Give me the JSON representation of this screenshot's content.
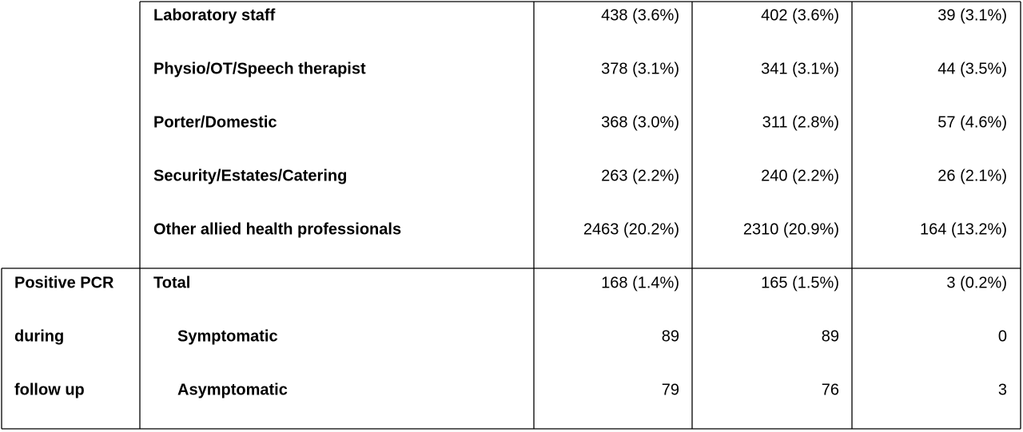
{
  "table": {
    "sections": [
      {
        "rows": [
          {
            "label": "Laboratory staff",
            "values": [
              "438 (3.6%)",
              "402 (3.6%)",
              "39 (3.1%)"
            ]
          },
          {
            "label": "Physio/OT/Speech therapist",
            "values": [
              "378 (3.1%)",
              "341 (3.1%)",
              "44 (3.5%)"
            ]
          },
          {
            "label": "Porter/Domestic",
            "values": [
              "368 (3.0%)",
              "311 (2.8%)",
              "57 (4.6%)"
            ]
          },
          {
            "label": "Security/Estates/Catering",
            "values": [
              "263 (2.2%)",
              "240 (2.2%)",
              "26 (2.1%)"
            ]
          },
          {
            "label": "Other allied health professionals",
            "values": [
              "2463 (20.2%)",
              "2310 (20.9%)",
              "164 (13.2%)"
            ]
          }
        ]
      },
      {
        "group": [
          "Positive PCR",
          "during",
          "follow up"
        ],
        "rows": [
          {
            "label": "Total",
            "values": [
              "168 (1.4%)",
              "165 (1.5%)",
              "3 (0.2%)"
            ],
            "subrows": [
              {
                "label": "Symptomatic",
                "values": [
                  "89",
                  "89",
                  "0"
                ]
              },
              {
                "label": "Asymptomatic",
                "values": [
                  "79",
                  "76",
                  "3"
                ]
              }
            ]
          }
        ]
      }
    ]
  }
}
